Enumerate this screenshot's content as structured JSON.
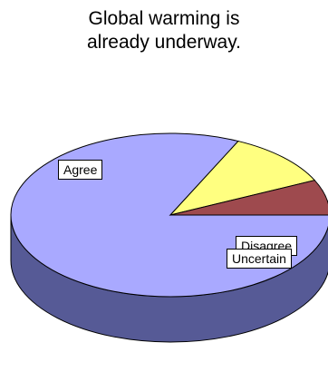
{
  "chart_data": {
    "type": "pie",
    "title_lines": [
      "Global warming is",
      "already underway."
    ],
    "slices": [
      {
        "label": "Agree",
        "value": 82,
        "color": "#a9a9ff",
        "side": "#565a96"
      },
      {
        "label": "Disagree",
        "value": 11,
        "color": "#ffff80",
        "side": "#9c9a3c"
      },
      {
        "label": "Uncertain",
        "value": 7,
        "color": "#9e4a4e",
        "side": "#5c2a2c"
      }
    ],
    "start_angle_deg": 0,
    "direction": "clockwise",
    "style": "3d",
    "legend": "none"
  }
}
